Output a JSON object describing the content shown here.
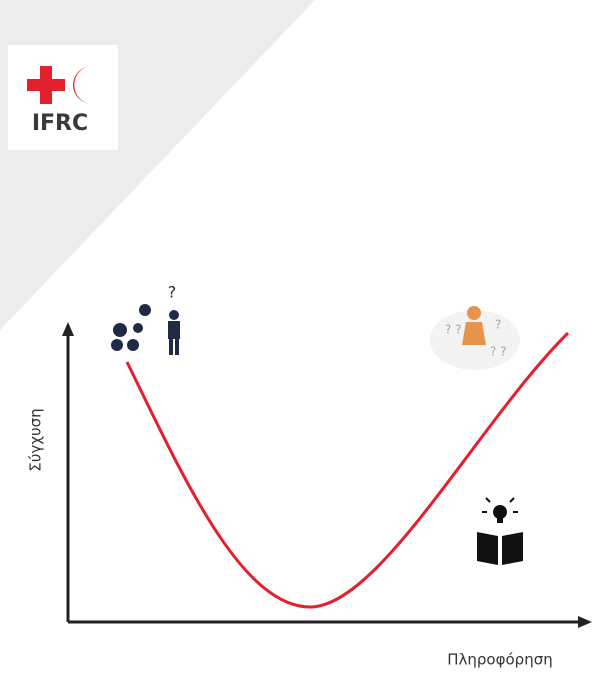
{
  "logo": {
    "text": "IFRC"
  },
  "axes": {
    "y_label": "Σύγχυση",
    "x_label": "Πληροφόρηση"
  }
}
